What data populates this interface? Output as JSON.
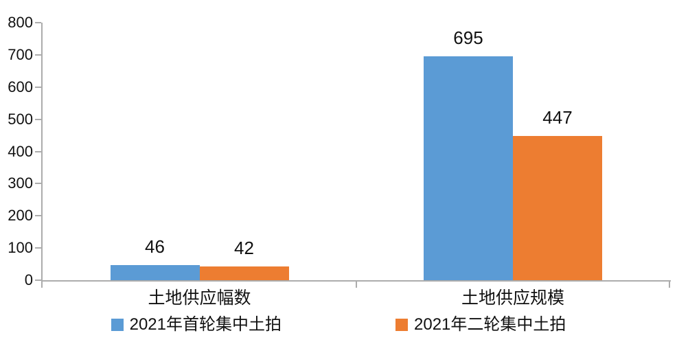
{
  "chart_data": {
    "type": "bar",
    "title": "",
    "categories": [
      "土地供应幅数",
      "土地供应规模"
    ],
    "series": [
      {
        "name": "2021年首轮集中土拍",
        "color": "#5B9BD5",
        "values": [
          46,
          695
        ],
        "data_labels": [
          "46",
          "695"
        ]
      },
      {
        "name": "2021年二轮集中土拍",
        "color": "#ED7D31",
        "values": [
          42,
          447
        ],
        "data_labels": [
          "42",
          "447"
        ]
      }
    ],
    "xlabel": "",
    "ylabel": "",
    "y_axis": {
      "min": 0,
      "max": 800,
      "step": 100,
      "tick_labels": [
        "0",
        "100",
        "200",
        "300",
        "400",
        "500",
        "600",
        "700",
        "800"
      ]
    },
    "grid": false,
    "data_labels_shown": true,
    "legend_position": "bottom",
    "colors": {
      "axis_line": "#ACACAC",
      "text": "#111111",
      "background": "#FFFFFF"
    }
  }
}
